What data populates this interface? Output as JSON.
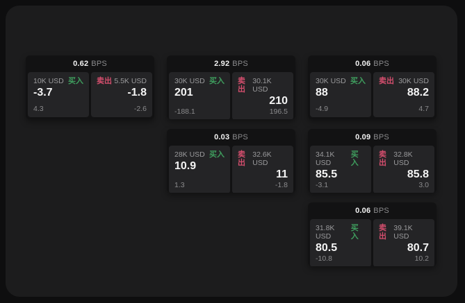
{
  "labels": {
    "bps_unit": "BPS",
    "buy": "买入",
    "sell": "卖出"
  },
  "colors": {
    "buy_accent": "#3f9e5e",
    "sell_accent": "#d44e6d",
    "panel_bg": "#1c1c1d",
    "card_bg": "#121213",
    "subpanel_bg": "#242426"
  },
  "cards": [
    {
      "id": "card-1",
      "row": 1,
      "col": 1,
      "bps": "0.62",
      "buy": {
        "amount": "10K USD",
        "price": "-3.7",
        "delta": "4.3"
      },
      "sell": {
        "amount": "5.5K USD",
        "price": "-1.8",
        "delta": "-2.6"
      }
    },
    {
      "id": "card-2",
      "row": 1,
      "col": 2,
      "bps": "2.92",
      "buy": {
        "amount": "30K USD",
        "price": "201",
        "delta": "-188.1"
      },
      "sell": {
        "amount": "30.1K USD",
        "price": "210",
        "delta": "196.5"
      }
    },
    {
      "id": "card-3",
      "row": 1,
      "col": 3,
      "bps": "0.06",
      "buy": {
        "amount": "30K USD",
        "price": "88",
        "delta": "-4.9"
      },
      "sell": {
        "amount": "30K USD",
        "price": "88.2",
        "delta": "4.7"
      }
    },
    {
      "id": "card-4",
      "row": 2,
      "col": 2,
      "bps": "0.03",
      "buy": {
        "amount": "28K USD",
        "price": "10.9",
        "delta": "1.3"
      },
      "sell": {
        "amount": "32.6K USD",
        "price": "11",
        "delta": "-1.8"
      }
    },
    {
      "id": "card-5",
      "row": 2,
      "col": 3,
      "bps": "0.09",
      "buy": {
        "amount": "34.1K USD",
        "price": "85.5",
        "delta": "-3.1"
      },
      "sell": {
        "amount": "32.8K USD",
        "price": "85.8",
        "delta": "3.0"
      }
    },
    {
      "id": "card-6",
      "row": 3,
      "col": 3,
      "bps": "0.06",
      "buy": {
        "amount": "31.8K USD",
        "price": "80.5",
        "delta": "-10.8"
      },
      "sell": {
        "amount": "39.1K USD",
        "price": "80.7",
        "delta": "10.2"
      }
    }
  ]
}
